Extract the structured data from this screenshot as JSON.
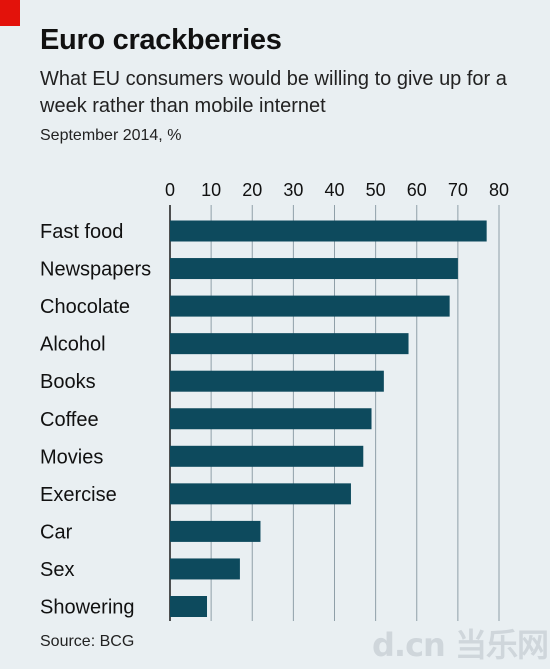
{
  "header": {
    "title": "Euro crackberries",
    "subtitle": "What EU consumers would be willing to give up for a week rather than mobile internet",
    "date_unit": "September 2014, %"
  },
  "footer": {
    "source": "Source: BCG",
    "watermark": "d.cn 当乐网"
  },
  "colors": {
    "bar": "#0d4a5d",
    "background": "#e9eff2",
    "accent": "#e3120b",
    "gridline": "#8f9fa8"
  },
  "chart_data": {
    "type": "bar",
    "orientation": "horizontal",
    "title": "Euro crackberries",
    "subtitle": "What EU consumers would be willing to give up for a week rather than mobile internet",
    "xlabel": "",
    "ylabel": "",
    "xlim": [
      0,
      80
    ],
    "x_ticks": [
      0,
      10,
      20,
      30,
      40,
      50,
      60,
      70,
      80
    ],
    "tick_position": "top",
    "grid": true,
    "categories": [
      "Fast food",
      "Newspapers",
      "Chocolate",
      "Alcohol",
      "Books",
      "Coffee",
      "Movies",
      "Exercise",
      "Car",
      "Sex",
      "Showering"
    ],
    "values": [
      77,
      70,
      68,
      58,
      52,
      49,
      47,
      44,
      22,
      17,
      9
    ]
  }
}
